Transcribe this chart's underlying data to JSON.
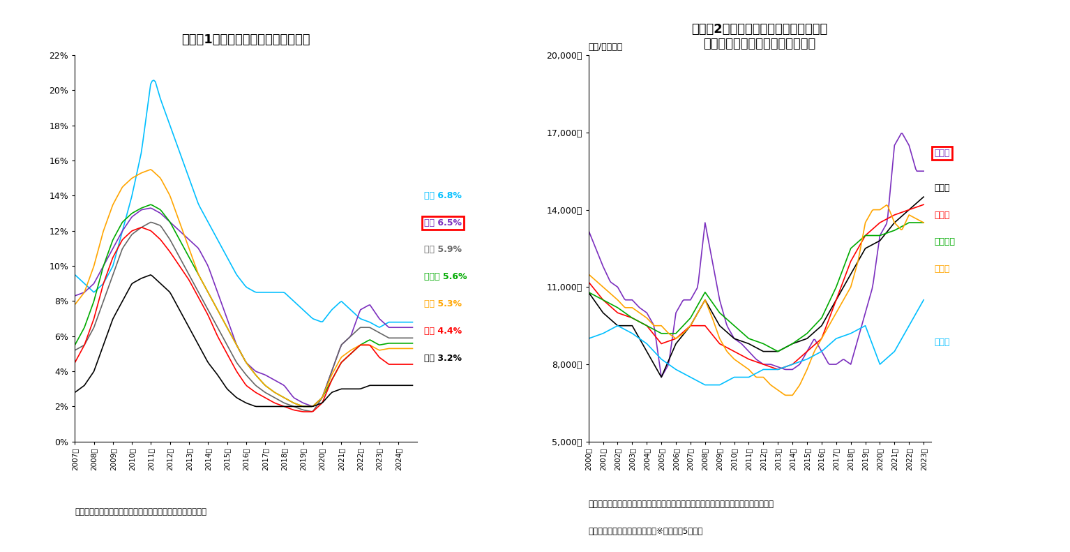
{
  "chart1": {
    "title": "図表－1　主要都市のオフィス空室率",
    "source": "（出所）三鬼商事のデータを基にニッセイ基礎研究所が作成",
    "ylim": [
      0,
      0.22
    ],
    "ytick_labels": [
      "0%",
      "2%",
      "4%",
      "6%",
      "8%",
      "10%",
      "12%",
      "14%",
      "16%",
      "18%",
      "20%",
      "22%"
    ],
    "cities1": [
      "仙台",
      "横浜",
      "東京",
      "名古屋",
      "福岡",
      "大阪",
      "札幌"
    ],
    "colors1": [
      "#00BFFF",
      "#7B2FBE",
      "#666666",
      "#00AA00",
      "#FFA500",
      "#FF0000",
      "#000000"
    ],
    "labels1": [
      "仙台 6.8%",
      "横浜 6.5%",
      "東京 5.9%",
      "名古屋 5.6%",
      "福岡 5.3%",
      "大阪 4.4%",
      "札幌 3.2%"
    ],
    "yokohama_boxed1": true
  },
  "chart2": {
    "title": "図表－2　主要都市のオフィス成約賮料\n（オフィスレント・インデクス）",
    "ylabel": "（円/月・坤）",
    "source1": "（出所）三幸エステート・ニッセイ基礎研究所「オフィスレント・インデクス」を基",
    "source2": "にニッセイ基礎研究所が作成　※東京都心5区除き",
    "ylim": [
      5000,
      20000
    ],
    "ytick_labels": [
      "5,000円",
      "8,000円",
      "11,000円",
      "14,000円",
      "17,000円",
      "20,000円"
    ],
    "cities2": [
      "横浜市",
      "札幌市",
      "大阪市",
      "名古屋市",
      "福岡市",
      "仙台市"
    ],
    "colors2": [
      "#7B2FBE",
      "#000000",
      "#FF0000",
      "#00AA00",
      "#FFA500",
      "#00BFFF"
    ],
    "labels2": [
      "横浜市",
      "札幌市",
      "大阪市",
      "名古屋市",
      "福岡市",
      "仙台市"
    ],
    "yokohama_boxed2": true
  }
}
